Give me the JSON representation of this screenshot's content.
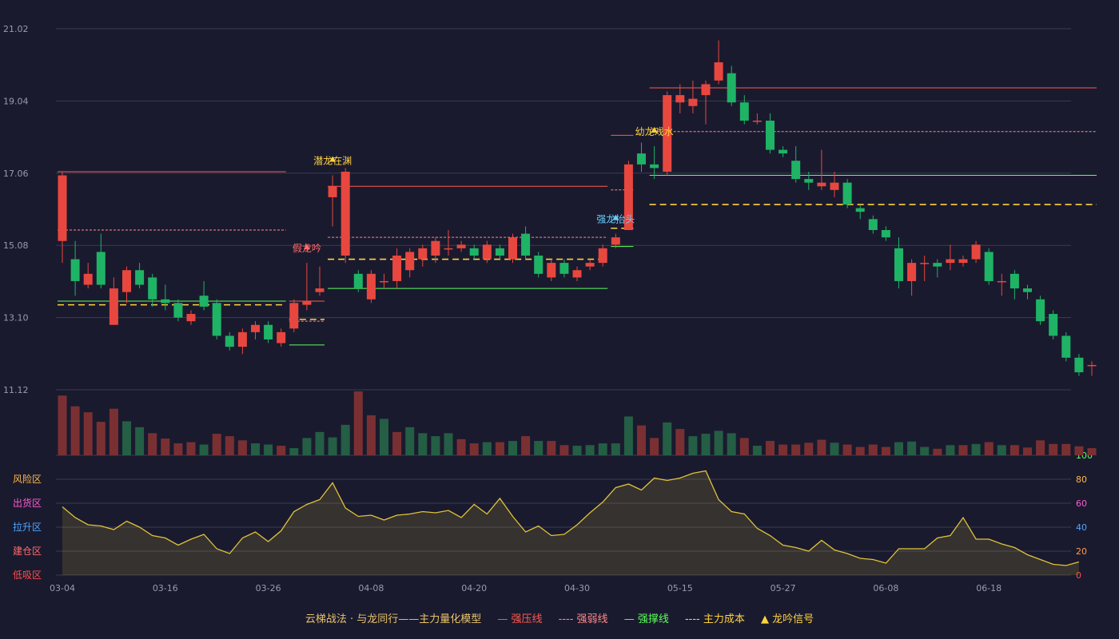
{
  "chart_data": {
    "type": "candlestick",
    "price_ticks": [
      "21.02",
      "19.04",
      "17.06",
      "15.08",
      "13.10",
      "11.12"
    ],
    "ylim": [
      11.12,
      21.02
    ],
    "x_ticks": [
      {
        "i": 0,
        "label": "03-04"
      },
      {
        "i": 8,
        "label": "03-16"
      },
      {
        "i": 16,
        "label": "03-26"
      },
      {
        "i": 24,
        "label": "04-08"
      },
      {
        "i": 32,
        "label": "04-20"
      },
      {
        "i": 40,
        "label": "04-30"
      },
      {
        "i": 48,
        "label": "05-15"
      },
      {
        "i": 56,
        "label": "05-27"
      },
      {
        "i": 64,
        "label": "06-08"
      },
      {
        "i": 72,
        "label": "06-18"
      }
    ],
    "candles": [
      [
        15.2,
        17.0,
        17.1,
        14.6
      ],
      [
        14.7,
        14.1,
        15.2,
        13.7
      ],
      [
        14.0,
        14.3,
        14.6,
        13.9
      ],
      [
        14.9,
        14.0,
        15.4,
        13.9
      ],
      [
        12.9,
        13.9,
        14.2,
        12.9
      ],
      [
        13.8,
        14.4,
        14.5,
        13.5
      ],
      [
        14.4,
        14.0,
        14.6,
        13.9
      ],
      [
        14.2,
        13.6,
        14.3,
        13.4
      ],
      [
        13.6,
        13.5,
        14.0,
        13.3
      ],
      [
        13.5,
        13.1,
        13.6,
        13.0
      ],
      [
        13.0,
        13.2,
        13.3,
        12.9
      ],
      [
        13.7,
        13.4,
        14.1,
        13.3
      ],
      [
        13.5,
        12.6,
        13.6,
        12.5
      ],
      [
        12.6,
        12.3,
        12.7,
        12.2
      ],
      [
        12.3,
        12.7,
        12.8,
        12.1
      ],
      [
        12.7,
        12.9,
        13.0,
        12.5
      ],
      [
        12.9,
        12.5,
        13.0,
        12.4
      ],
      [
        12.4,
        12.7,
        12.8,
        12.3
      ],
      [
        12.8,
        13.5,
        13.6,
        12.7
      ],
      [
        13.45,
        13.55,
        14.6,
        13.3
      ],
      [
        13.8,
        13.9,
        14.5,
        13.7
      ],
      [
        16.4,
        16.7,
        17.0,
        15.6
      ],
      [
        14.8,
        17.1,
        17.2,
        14.6
      ],
      [
        14.3,
        13.9,
        14.4,
        13.8
      ],
      [
        13.6,
        14.3,
        14.4,
        13.5
      ],
      [
        14.1,
        14.1,
        14.3,
        13.9
      ],
      [
        14.1,
        14.8,
        15.0,
        13.9
      ],
      [
        14.4,
        14.9,
        15.0,
        14.2
      ],
      [
        14.7,
        15.0,
        15.1,
        14.5
      ],
      [
        14.8,
        15.2,
        15.3,
        14.6
      ],
      [
        15.0,
        15.0,
        15.5,
        14.8
      ],
      [
        15.0,
        15.1,
        15.2,
        14.9
      ],
      [
        15.0,
        14.8,
        15.1,
        14.7
      ],
      [
        14.7,
        15.1,
        15.2,
        14.6
      ],
      [
        15.0,
        14.8,
        15.1,
        14.7
      ],
      [
        14.7,
        15.3,
        15.4,
        14.6
      ],
      [
        15.4,
        14.8,
        15.6,
        14.7
      ],
      [
        14.8,
        14.3,
        14.9,
        14.2
      ],
      [
        14.2,
        14.6,
        14.7,
        14.1
      ],
      [
        14.6,
        14.3,
        14.7,
        14.2
      ],
      [
        14.2,
        14.4,
        14.5,
        14.1
      ],
      [
        14.5,
        14.6,
        14.7,
        14.4
      ],
      [
        14.6,
        15.0,
        15.1,
        14.5
      ],
      [
        15.1,
        15.3,
        15.4,
        15.0
      ],
      [
        15.5,
        17.3,
        17.4,
        15.5
      ],
      [
        17.6,
        17.3,
        17.9,
        17.1
      ],
      [
        17.3,
        17.2,
        17.8,
        16.9
      ],
      [
        17.1,
        19.2,
        19.3,
        17.0
      ],
      [
        19.0,
        19.2,
        19.5,
        18.7
      ],
      [
        18.9,
        19.1,
        19.6,
        18.7
      ],
      [
        19.2,
        19.5,
        19.6,
        18.4
      ],
      [
        19.6,
        20.1,
        20.7,
        19.5
      ],
      [
        19.8,
        19.0,
        20.0,
        18.9
      ],
      [
        19.0,
        18.5,
        19.2,
        18.4
      ],
      [
        18.5,
        18.5,
        18.7,
        18.4
      ],
      [
        18.5,
        17.7,
        18.7,
        17.6
      ],
      [
        17.7,
        17.6,
        17.8,
        17.5
      ],
      [
        17.4,
        16.9,
        17.8,
        16.8
      ],
      [
        16.9,
        16.8,
        17.1,
        16.6
      ],
      [
        16.7,
        16.8,
        17.7,
        16.6
      ],
      [
        16.6,
        16.8,
        17.1,
        16.4
      ],
      [
        16.8,
        16.2,
        16.9,
        16.1
      ],
      [
        16.1,
        16.0,
        16.2,
        15.8
      ],
      [
        15.8,
        15.5,
        15.9,
        15.4
      ],
      [
        15.5,
        15.3,
        15.6,
        15.2
      ],
      [
        15.0,
        14.1,
        15.3,
        13.9
      ],
      [
        14.1,
        14.6,
        14.7,
        13.7
      ],
      [
        14.6,
        14.6,
        14.8,
        14.1
      ],
      [
        14.6,
        14.5,
        14.7,
        14.2
      ],
      [
        14.6,
        14.7,
        15.1,
        14.4
      ],
      [
        14.6,
        14.7,
        14.8,
        14.5
      ],
      [
        14.7,
        15.1,
        15.2,
        14.6
      ],
      [
        14.9,
        14.1,
        15.0,
        14.0
      ],
      [
        14.1,
        14.1,
        14.3,
        13.7
      ],
      [
        14.3,
        13.9,
        14.4,
        13.6
      ],
      [
        13.9,
        13.8,
        14.0,
        13.6
      ],
      [
        13.6,
        13.0,
        13.7,
        12.9
      ],
      [
        13.2,
        12.6,
        13.3,
        12.5
      ],
      [
        12.6,
        12.0,
        12.7,
        11.9
      ],
      [
        12.0,
        11.6,
        12.1,
        11.5
      ],
      [
        11.8,
        11.8,
        11.9,
        11.5
      ]
    ],
    "volume": [
      [
        1.0,
        "r"
      ],
      [
        0.82,
        "r"
      ],
      [
        0.72,
        "r"
      ],
      [
        0.56,
        "r"
      ],
      [
        0.78,
        "r"
      ],
      [
        0.57,
        "g"
      ],
      [
        0.47,
        "g"
      ],
      [
        0.37,
        "r"
      ],
      [
        0.28,
        "r"
      ],
      [
        0.2,
        "r"
      ],
      [
        0.22,
        "r"
      ],
      [
        0.18,
        "g"
      ],
      [
        0.36,
        "r"
      ],
      [
        0.32,
        "r"
      ],
      [
        0.25,
        "r"
      ],
      [
        0.2,
        "g"
      ],
      [
        0.18,
        "g"
      ],
      [
        0.16,
        "r"
      ],
      [
        0.12,
        "g"
      ],
      [
        0.29,
        "g"
      ],
      [
        0.39,
        "g"
      ],
      [
        0.3,
        "g"
      ],
      [
        0.51,
        "g"
      ],
      [
        1.07,
        "r"
      ],
      [
        0.67,
        "r"
      ],
      [
        0.61,
        "g"
      ],
      [
        0.39,
        "r"
      ],
      [
        0.47,
        "g"
      ],
      [
        0.37,
        "g"
      ],
      [
        0.32,
        "g"
      ],
      [
        0.37,
        "g"
      ],
      [
        0.27,
        "r"
      ],
      [
        0.2,
        "r"
      ],
      [
        0.22,
        "g"
      ],
      [
        0.22,
        "r"
      ],
      [
        0.24,
        "g"
      ],
      [
        0.32,
        "r"
      ],
      [
        0.24,
        "g"
      ],
      [
        0.24,
        "r"
      ],
      [
        0.17,
        "r"
      ],
      [
        0.16,
        "g"
      ],
      [
        0.17,
        "g"
      ],
      [
        0.2,
        "g"
      ],
      [
        0.2,
        "g"
      ],
      [
        0.65,
        "g"
      ],
      [
        0.5,
        "r"
      ],
      [
        0.29,
        "r"
      ],
      [
        0.55,
        "g"
      ],
      [
        0.44,
        "r"
      ],
      [
        0.32,
        "g"
      ],
      [
        0.36,
        "g"
      ],
      [
        0.41,
        "g"
      ],
      [
        0.37,
        "g"
      ],
      [
        0.29,
        "r"
      ],
      [
        0.16,
        "g"
      ],
      [
        0.24,
        "r"
      ],
      [
        0.18,
        "r"
      ],
      [
        0.18,
        "r"
      ],
      [
        0.21,
        "r"
      ],
      [
        0.26,
        "r"
      ],
      [
        0.21,
        "g"
      ],
      [
        0.18,
        "r"
      ],
      [
        0.14,
        "r"
      ],
      [
        0.18,
        "r"
      ],
      [
        0.14,
        "r"
      ],
      [
        0.22,
        "g"
      ],
      [
        0.23,
        "g"
      ],
      [
        0.14,
        "g"
      ],
      [
        0.11,
        "r"
      ],
      [
        0.17,
        "g"
      ],
      [
        0.17,
        "r"
      ],
      [
        0.19,
        "g"
      ],
      [
        0.22,
        "r"
      ],
      [
        0.17,
        "g"
      ],
      [
        0.17,
        "r"
      ],
      [
        0.13,
        "r"
      ],
      [
        0.25,
        "r"
      ],
      [
        0.19,
        "r"
      ],
      [
        0.19,
        "r"
      ],
      [
        0.15,
        "r"
      ],
      [
        0.12,
        "r"
      ]
    ],
    "indicator": {
      "ylim": [
        0,
        100
      ],
      "ticks": [
        "100",
        "80",
        "60",
        "40",
        "20",
        "0"
      ],
      "zones": [
        "风险区",
        "出货区",
        "拉升区",
        "建仓区",
        "低吸区"
      ],
      "values": [
        57,
        48,
        42,
        41,
        38,
        45,
        40,
        33,
        31,
        25,
        30,
        34,
        22,
        18,
        31,
        36,
        28,
        37,
        53,
        59,
        63,
        77,
        56,
        49,
        50,
        46,
        50,
        51,
        53,
        52,
        54,
        48,
        59,
        51,
        64,
        49,
        36,
        41,
        33,
        34,
        42,
        52,
        61,
        73,
        76,
        71,
        81,
        79,
        81,
        85,
        87,
        63,
        53,
        51,
        39,
        33,
        25,
        23,
        20,
        29,
        21,
        18,
        14,
        13,
        10,
        22,
        22,
        22,
        31,
        33,
        48,
        30,
        30,
        26,
        23,
        17,
        13,
        9,
        8,
        11
      ]
    },
    "signals": [
      {
        "i": 19,
        "label": "假龙吟",
        "color": "#ff6b6b"
      },
      {
        "i": 21,
        "label": "潜龙在渊",
        "color": "#ffd23f"
      },
      {
        "i": 43,
        "label": "强龙抬头",
        "color": "#66ccff"
      },
      {
        "i": 46,
        "label": "幼龙戏水",
        "color": "#ffd23f"
      }
    ],
    "levels": [
      {
        "i0": 0,
        "i1": 17,
        "press": 17.1,
        "weak": 15.5,
        "cost": 13.45,
        "support": 13.55
      },
      {
        "i0": 18,
        "i1": 20,
        "press": 13.55,
        "weak": 13.0,
        "cost": 13.05,
        "support": 12.35
      },
      {
        "i0": 21,
        "i1": 42,
        "press": 16.7,
        "weak": 15.3,
        "cost": 14.7,
        "support": 13.9
      },
      {
        "i0": 43,
        "i1": 44,
        "press": 18.1,
        "weak": 16.6,
        "cost": 15.55,
        "support": 15.05
      },
      {
        "i0": 46,
        "i1": 80,
        "press": 19.4,
        "weak": 18.2,
        "cost": 16.2,
        "support": 17.0
      }
    ],
    "colors": {
      "up": "#e8473f",
      "down": "#1fb366",
      "press": "#ff5a4e",
      "weak": "#ff8a8a",
      "support": "#5dff5d",
      "cost": "#ffd23f",
      "indicator": "#e0c33a"
    }
  },
  "legend": {
    "title": "云梯战法 · 与龙同行——主力量化模型",
    "press": "— 强压线",
    "weak": "---- 强弱线",
    "support": "— 强撑线",
    "cost": "---- 主力成本",
    "signal": "▲ 龙吟信号"
  }
}
